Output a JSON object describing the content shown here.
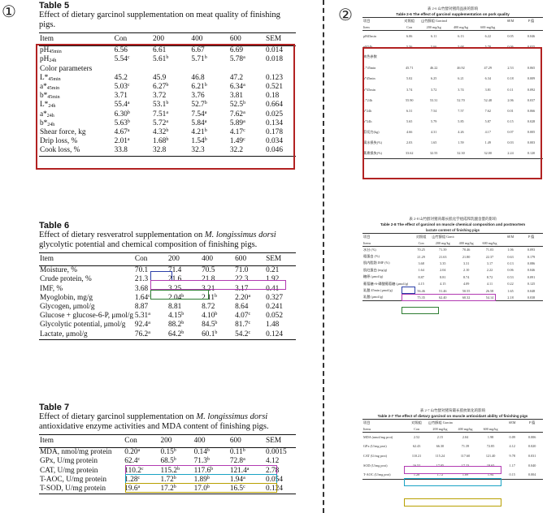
{
  "markers": {
    "left": "①",
    "right": "②"
  },
  "table5": {
    "title": "Table 5",
    "caption": "Effect of dietary garcinol supplementation on meat quality of finishing pigs.",
    "headers": [
      "Item",
      "Con",
      "200",
      "400",
      "600",
      "SEM"
    ],
    "rows": [
      {
        "item": "pH",
        "sub": "45min",
        "vals": [
          [
            "6.56",
            ""
          ],
          [
            "6.61",
            ""
          ],
          [
            "6.67",
            ""
          ],
          [
            "6.69",
            ""
          ]
        ],
        "sem": "0.014"
      },
      {
        "item": "pH",
        "sub": "24h",
        "vals": [
          [
            "5.54",
            "c"
          ],
          [
            "5.61",
            "b"
          ],
          [
            "5.71",
            "b"
          ],
          [
            "5.78",
            "a"
          ]
        ],
        "sem": "0.018"
      },
      {
        "item": "Color parameters",
        "sub": "",
        "vals": [
          [
            "",
            ""
          ],
          [
            "",
            ""
          ],
          [
            "",
            ""
          ],
          [
            "",
            ""
          ]
        ],
        "sem": ""
      },
      {
        "item": "L*",
        "sub": "45min",
        "vals": [
          [
            "45.2",
            ""
          ],
          [
            "45.9",
            ""
          ],
          [
            "46.8",
            ""
          ],
          [
            "47.2",
            ""
          ]
        ],
        "sem": "0.123"
      },
      {
        "item": "a*",
        "sub": "45min",
        "vals": [
          [
            "5.03",
            "c"
          ],
          [
            "6.27",
            "b"
          ],
          [
            "6.21",
            "b"
          ],
          [
            "6.34",
            "a"
          ]
        ],
        "sem": "0.521"
      },
      {
        "item": "b*",
        "sub": "45min",
        "vals": [
          [
            "3.71",
            ""
          ],
          [
            "3.72",
            ""
          ],
          [
            "3.76",
            ""
          ],
          [
            "3.81",
            ""
          ]
        ],
        "sem": "0.18"
      },
      {
        "item": "L*",
        "sub": "24h",
        "vals": [
          [
            "55.4",
            "a"
          ],
          [
            "53.1",
            "b"
          ],
          [
            "52.7",
            "b"
          ],
          [
            "52.5",
            "b"
          ]
        ],
        "sem": "0.664"
      },
      {
        "item": "a*",
        "sub": "24h",
        "vals": [
          [
            "6.30",
            "b"
          ],
          [
            "7.51",
            "a"
          ],
          [
            "7.54",
            "a"
          ],
          [
            "7.62",
            "a"
          ]
        ],
        "sem": "0.025"
      },
      {
        "item": "b*",
        "sub": "24h",
        "vals": [
          [
            "5.63",
            "b"
          ],
          [
            "5.72",
            "a"
          ],
          [
            "5.84",
            "a"
          ],
          [
            "5.89",
            "a"
          ]
        ],
        "sem": "0.134"
      },
      {
        "item": "Shear force, kg",
        "sub": "",
        "vals": [
          [
            "4.67",
            "a"
          ],
          [
            "4.32",
            "b"
          ],
          [
            "4.21",
            "b"
          ],
          [
            "4.17",
            "c"
          ]
        ],
        "sem": "0.178"
      },
      {
        "item": "Drip loss, %",
        "sub": "",
        "vals": [
          [
            "2.01",
            "a"
          ],
          [
            "1.68",
            "b"
          ],
          [
            "1.54",
            "b"
          ],
          [
            "1.49",
            "c"
          ]
        ],
        "sem": "0.034"
      },
      {
        "item": "Cook loss, %",
        "sub": "",
        "vals": [
          [
            "33.8",
            ""
          ],
          [
            "32.8",
            ""
          ],
          [
            "32.3",
            ""
          ],
          [
            "32.2",
            ""
          ]
        ],
        "sem": "0.046"
      }
    ]
  },
  "table6": {
    "title": "Table 6",
    "caption": "Effect of dietary resveratrol supplementation on M. longissimus dorsi glycolytic potential and chemical composition of finishing pigs.",
    "caption_pre": "Effect of dietary resveratrol supplementation on ",
    "caption_italic": "M. longissimus dorsi",
    "caption_post": " glycolytic potential and chemical composition of finishing pigs.",
    "headers": [
      "Item",
      "Con",
      "200",
      "400",
      "600",
      "SEM"
    ],
    "rows": [
      {
        "item": "Moisture, %",
        "vals": [
          [
            "70.1",
            ""
          ],
          [
            "71.4",
            ""
          ],
          [
            "70.5",
            ""
          ],
          [
            "71.0",
            ""
          ]
        ],
        "sem": "0.21"
      },
      {
        "item": "Crude protein, %",
        "vals": [
          [
            "21.3",
            ""
          ],
          [
            "21.6",
            ""
          ],
          [
            "21.8",
            ""
          ],
          [
            "22.3",
            ""
          ]
        ],
        "sem": "1.92"
      },
      {
        "item": "IMF, %",
        "vals": [
          [
            "3.68",
            ""
          ],
          [
            "3.25",
            ""
          ],
          [
            "3.21",
            ""
          ],
          [
            "3.17",
            ""
          ]
        ],
        "sem": "0.41"
      },
      {
        "item": "Myoglobin, mg/g",
        "vals": [
          [
            "1.64",
            "c"
          ],
          [
            "2.04",
            "b"
          ],
          [
            "2.11",
            "b"
          ],
          [
            "2.20",
            "a"
          ]
        ],
        "sem": "0.327"
      },
      {
        "item": "Glycogen, μmol/g",
        "vals": [
          [
            "8.87",
            ""
          ],
          [
            "8.81",
            ""
          ],
          [
            "8.72",
            ""
          ],
          [
            "8.64",
            ""
          ]
        ],
        "sem": "0.241"
      },
      {
        "item": "Glucose + glucose-6-P, μmol/g",
        "vals": [
          [
            "5.31",
            "a"
          ],
          [
            "4.15",
            "b"
          ],
          [
            "4.10",
            "b"
          ],
          [
            "4.07",
            "c"
          ]
        ],
        "sem": "0.052"
      },
      {
        "item": "Glycolytic potential, μmol/g",
        "vals": [
          [
            "92.4",
            "a"
          ],
          [
            "88.2",
            "b"
          ],
          [
            "84.5",
            "b"
          ],
          [
            "81.7",
            "c"
          ]
        ],
        "sem": "1.48"
      },
      {
        "item": "Lactate, μmol/g",
        "vals": [
          [
            "76.2",
            "a"
          ],
          [
            "64.2",
            "b"
          ],
          [
            "60.1",
            "b"
          ],
          [
            "54.2",
            "c"
          ]
        ],
        "sem": "0.124"
      }
    ]
  },
  "table7": {
    "title": "Table 7",
    "caption_pre": "Effect of dietary garcinol supplementation on ",
    "caption_italic": "M. longissimus dorsi",
    "caption_post": " antioxidative enzyme activities and MDA content of finishing pigs.",
    "headers": [
      "Item",
      "Con",
      "200",
      "400",
      "600",
      "SEM"
    ],
    "rows": [
      {
        "item": "MDA, nmol/mg protein",
        "vals": [
          [
            "0.20",
            "a"
          ],
          [
            "0.15",
            "b"
          ],
          [
            "0.14",
            "b"
          ],
          [
            "0.11",
            "b"
          ]
        ],
        "sem": "0.0015"
      },
      {
        "item": "GPx, U/mg protein",
        "vals": [
          [
            "62.4",
            "c"
          ],
          [
            "68.5",
            "b"
          ],
          [
            "71.3",
            "b"
          ],
          [
            "72.8",
            "a"
          ]
        ],
        "sem": "4.12"
      },
      {
        "item": "CAT, U/mg protein",
        "vals": [
          [
            "110.2",
            "c"
          ],
          [
            "115.2",
            "b"
          ],
          [
            "117.6",
            "b"
          ],
          [
            "121.4",
            "a"
          ]
        ],
        "sem": "2.78"
      },
      {
        "item": "T-AOC, U/mg protein",
        "vals": [
          [
            "1.28",
            "c"
          ],
          [
            "1.72",
            "b"
          ],
          [
            "1.89",
            "b"
          ],
          [
            "1.94",
            "a"
          ]
        ],
        "sem": "0.054"
      },
      {
        "item": "T-SOD, U/mg protein",
        "vals": [
          [
            "19.6",
            "a"
          ],
          [
            "17.2",
            "b"
          ],
          [
            "17.0",
            "b"
          ],
          [
            "16.5",
            "c"
          ]
        ],
        "sem": "0.124"
      }
    ]
  },
  "thumb5": {
    "cn_title": "表 2-6 山竹醇对猪肉品质的影响",
    "en_title": "Table 2-6 The effect of garcinol supplementation on pork quality",
    "head1": [
      "项目",
      "对照组",
      "山竹醇组 Garcinol groups",
      "",
      "",
      "SEM",
      "P 值"
    ],
    "head2": [
      "Item",
      "Con",
      "200 mg/kg",
      "400 mg/kg",
      "600 mg/kg",
      "",
      ""
    ],
    "rows": [
      [
        "pH45min",
        "6.06",
        "6.11",
        "6.13",
        "6.22",
        "0.05",
        "0.046"
      ],
      [
        "pH24h",
        "5.56",
        "5.66",
        "5.68",
        "5.78",
        "0.06",
        "0.035"
      ],
      [
        "肉色参数",
        "",
        "",
        "",
        "",
        "",
        ""
      ],
      [
        "L*45min",
        "45.71",
        "46.22",
        "46.92",
        "47.29",
        "2.53",
        "0.065"
      ],
      [
        "a*45min",
        "5.02",
        "6.25",
        "6.21",
        "6.34",
        "0.18",
        "0.009"
      ],
      [
        "b*45min",
        "3.74",
        "3.72",
        "3.74",
        "3.81",
        "0.11",
        "0.092"
      ],
      [
        "L*24h",
        "55.90",
        "53.31",
        "52.70",
        "52.48",
        "2.06",
        "0.037"
      ],
      [
        "a*24h",
        "6.31",
        "7.54",
        "7.57",
        "7.62",
        "0.01",
        "0.066"
      ],
      [
        "b*24h",
        "5.65",
        "5.79",
        "5.85",
        "5.87",
        "0.15",
        "0.028"
      ],
      [
        "剪切力(kg)",
        "4.66",
        "4.31",
        "4.26",
        "4.17",
        "0.07",
        "0.005"
      ],
      [
        "滴水损失(%)",
        "2.03",
        "1.65",
        "1.59",
        "1.49",
        "0.03",
        "0.003"
      ],
      [
        "蒸煮损失(%)",
        "33.62",
        "32.55",
        "32.30",
        "32.00",
        "2.24",
        "0.120"
      ]
    ]
  },
  "thumb6": {
    "cn_title": "表 2-8 山竹醇对猪背最长肌化学组成和乳酸含量的影响",
    "en_title": "Table 2-8 The effect of garcinol on muscle chemical composition and postmortem",
    "en_title2": "lactate content of finishing pigs",
    "head1": [
      "项目",
      "对照组",
      "山竹醇组 Garcinol groups",
      "",
      "",
      "SEM",
      "P 值"
    ],
    "head2": [
      "Items",
      "Con",
      "200 mg/kg",
      "400 mg/kg",
      "600 mg/kg",
      "",
      ""
    ],
    "rows": [
      [
        "水分 (%)",
        "70.25",
        "71.39",
        "70.46",
        "71.03",
        "1.06",
        "0.093"
      ],
      [
        "粗蛋白 (%)",
        "21.29",
        "21.63",
        "21.80",
        "22.37",
        "0.63",
        "0.179"
      ],
      [
        "肌内脂肪 IMF (%)",
        "3.68",
        "3.35",
        "3.31",
        "3.17",
        "0.13",
        "0.086"
      ],
      [
        "肌红蛋白 (mg/g)",
        "1.64",
        "2.04",
        "2.10",
        "2.22",
        "0.06",
        "0.046"
      ],
      [
        "糖原 (μmol/g)",
        "8.87",
        "8.81",
        "8.74",
        "8.72",
        "0.53",
        "0.091"
      ],
      [
        "葡萄糖+6-磷酸葡萄糖 (μmol/g)",
        "4.15",
        "4.15",
        "4.09",
        "4.11",
        "0.22",
        "0.125"
      ],
      [
        "乳酸 45min (μmol/g)",
        "56.46",
        "51.46",
        "50.55",
        "26.58",
        "1.65",
        "0.048"
      ],
      [
        "乳酸 (μmol/g)",
        "75.35",
        "62.40",
        "60.32",
        "54.14",
        "2.18",
        "0.038"
      ]
    ]
  },
  "thumb7": {
    "cn_title": "表 2-7 山竹醇对猪背最长肌抗氧化的影响",
    "en_title": "Table 2-7 The effect of dietary garcinol on muscle antioxidant ability of finishing pigs",
    "head1": [
      "项目",
      "对照组",
      "山竹醇组 Garcinol groups",
      "",
      "",
      "SEM",
      "P 值"
    ],
    "head2": [
      "Items",
      "Con",
      "200 mg/kg",
      "400 mg/kg",
      "600 mg/kg",
      "",
      ""
    ],
    "rows": [
      [
        "MDA (nmol/mg prot)",
        "2.52",
        "2.15",
        "2.04",
        "1.98",
        "0.09",
        "0.006"
      ],
      [
        "GPx (U/mg prot)",
        "62.43",
        "66.30",
        "71.39",
        "72.85",
        "4.12",
        "0.020"
      ],
      [
        "CAT (U/mg prot)",
        "110.21",
        "115.24",
        "117.60",
        "121.40",
        "9.78",
        "0.031"
      ],
      [
        "SOD (U/mg prot)",
        "16.52",
        "17.05",
        "17.23",
        "19.65",
        "1.17",
        "0.040"
      ],
      [
        "T-AOC (U/mg prot)",
        "1.28",
        "1.72",
        "1.89",
        "1.94",
        "0.15",
        "0.004"
      ]
    ]
  },
  "highlight_colors": {
    "red": "#b22222",
    "blue": "#2b3fa8",
    "purple": "#b23ab2",
    "green": "#2e7d32",
    "cyan": "#1aa3c4",
    "olive": "#b8a000"
  }
}
